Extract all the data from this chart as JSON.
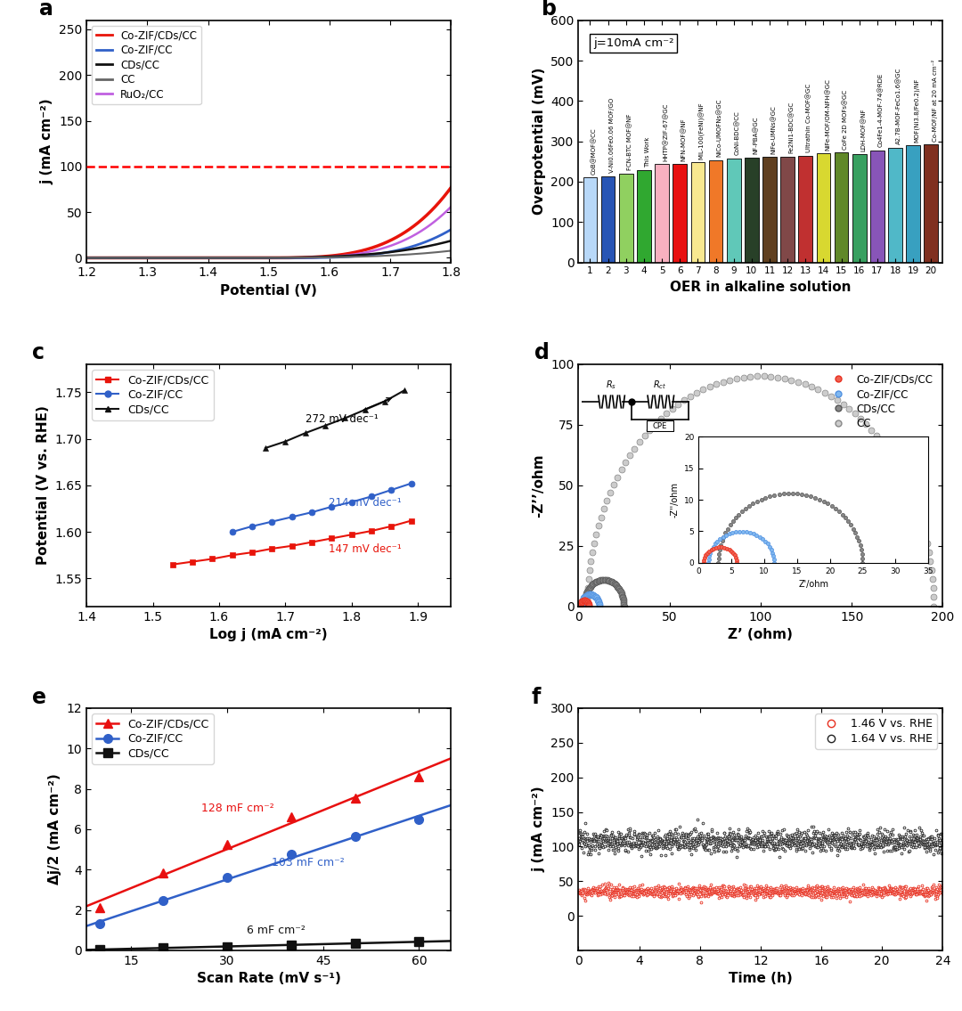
{
  "panel_a": {
    "title": "a",
    "xlabel": "Potential (V)",
    "ylabel": "j (mA cm⁻²)",
    "xlim": [
      1.2,
      1.8
    ],
    "ylim": [
      -5,
      260
    ],
    "yticks": [
      0,
      50,
      100,
      150,
      200,
      250
    ],
    "xticks": [
      1.2,
      1.3,
      1.4,
      1.5,
      1.6,
      1.7,
      1.8
    ],
    "dashed_y": 100,
    "curves": {
      "Co-ZIF/CDs/CC": {
        "color": "#e8140a",
        "lw": 2.5
      },
      "Co-ZIF/CC": {
        "color": "#3060c8",
        "lw": 2.0
      },
      "CDs/CC": {
        "color": "#111111",
        "lw": 1.8
      },
      "CC": {
        "color": "#666666",
        "lw": 1.5
      },
      "RuO2/CC": {
        "color": "#c060e0",
        "lw": 1.8
      }
    }
  },
  "panel_b": {
    "title": "b",
    "ylabel": "Overpotential (mV)",
    "xlabel": "OER in alkaline solution",
    "annotation": "j=10mA cm⁻²",
    "ylim": [
      0,
      600
    ],
    "yticks": [
      0,
      100,
      200,
      300,
      400,
      500,
      600
    ],
    "bars": [
      {
        "label": "CoB@MOF@CC",
        "value": 210,
        "color": "#b8d8f8"
      },
      {
        "label": "V-Ni0.06Fe0.06 MOF/GO",
        "value": 213,
        "color": "#2855b5"
      },
      {
        "label": "FCN-BTC MOF@NF",
        "value": 220,
        "color": "#90d060"
      },
      {
        "label": "This Work",
        "value": 228,
        "color": "#30a830"
      },
      {
        "label": "HHTP@ZIF-67@GC",
        "value": 243,
        "color": "#f8b0c0"
      },
      {
        "label": "NFN-MOF@NF",
        "value": 243,
        "color": "#e81010"
      },
      {
        "label": "MIL-100(FeNi)@NF",
        "value": 248,
        "color": "#f8e890"
      },
      {
        "label": "NiCo-UMOFNs@GC",
        "value": 254,
        "color": "#f07828"
      },
      {
        "label": "CoNi-BDC@CC",
        "value": 258,
        "color": "#60c8b8"
      },
      {
        "label": "NF-PBA@GC",
        "value": 260,
        "color": "#284028"
      },
      {
        "label": "NiFe-UMNs@GC",
        "value": 261,
        "color": "#604020"
      },
      {
        "label": "Fe2Ni1-BDC@GC",
        "value": 262,
        "color": "#804848"
      },
      {
        "label": "Ultrathin Co-MOF@GC",
        "value": 265,
        "color": "#c03030"
      },
      {
        "label": "NiFe-MOF/OM-NFH@GC",
        "value": 270,
        "color": "#d8d830"
      },
      {
        "label": "CoFe 2D MOFs@GC",
        "value": 272,
        "color": "#608828"
      },
      {
        "label": "LDH-MOF@NF",
        "value": 268,
        "color": "#38a060"
      },
      {
        "label": "Co4Fe1-4-MOF-74@RDE",
        "value": 278,
        "color": "#8855b8"
      },
      {
        "label": "A2.7B-MOF-FeCo1.6@GC",
        "value": 284,
        "color": "#50b8c8"
      },
      {
        "label": "MOF(Ni3.8/Fe0.2)/NF",
        "value": 290,
        "color": "#38a0c0"
      },
      {
        "label": "Co-MOF/NF at 20 mA cm⁻²",
        "value": 292,
        "color": "#803020"
      }
    ]
  },
  "panel_c": {
    "title": "c",
    "xlabel": "Log j (mA cm⁻²)",
    "ylabel": "Potential (V vs. RHE)",
    "xlim": [
      1.4,
      1.95
    ],
    "ylim": [
      1.52,
      1.78
    ],
    "yticks": [
      1.55,
      1.6,
      1.65,
      1.7,
      1.75
    ],
    "xticks": [
      1.4,
      1.5,
      1.6,
      1.7,
      1.8,
      1.9
    ],
    "series": {
      "Co-ZIF/CDs/CC": {
        "color": "#e8140a",
        "marker": "s",
        "x": [
          1.53,
          1.56,
          1.59,
          1.62,
          1.65,
          1.68,
          1.71,
          1.74,
          1.77,
          1.8,
          1.83,
          1.86,
          1.89
        ],
        "y": [
          1.565,
          1.568,
          1.571,
          1.575,
          1.578,
          1.582,
          1.585,
          1.589,
          1.593,
          1.597,
          1.601,
          1.606,
          1.612
        ]
      },
      "Co-ZIF/CC": {
        "color": "#3060c8",
        "marker": "o",
        "x": [
          1.62,
          1.65,
          1.68,
          1.71,
          1.74,
          1.77,
          1.8,
          1.83,
          1.86,
          1.89
        ],
        "y": [
          1.6,
          1.606,
          1.611,
          1.616,
          1.621,
          1.627,
          1.632,
          1.638,
          1.645,
          1.652
        ]
      },
      "CDs/CC": {
        "color": "#111111",
        "marker": "^",
        "x": [
          1.67,
          1.7,
          1.73,
          1.76,
          1.79,
          1.82,
          1.85,
          1.88
        ],
        "y": [
          1.69,
          1.697,
          1.706,
          1.714,
          1.722,
          1.731,
          1.74,
          1.752
        ]
      }
    }
  },
  "panel_d": {
    "title": "d",
    "xlabel": "Z’ (ohm)",
    "ylabel": "-Z’’/ohm",
    "xlim": [
      0,
      200
    ],
    "ylim": [
      0,
      100
    ],
    "yticks": [
      0,
      25,
      50,
      75,
      100
    ],
    "xticks": [
      0,
      50,
      100,
      150,
      200
    ],
    "cc": {
      "R_s": 5,
      "R_ct": 190,
      "color": "#aaaaaa",
      "ms": 5
    },
    "cds": {
      "R_s": 3,
      "R_ct": 22,
      "color": "#555555",
      "ms": 5
    },
    "czif": {
      "R_s": 1.5,
      "R_ct": 10,
      "color": "#5090e0",
      "ms": 5
    },
    "czifcds": {
      "R_s": 0.8,
      "R_ct": 5,
      "color": "#e83020",
      "ms": 5
    },
    "inset": {
      "xlim": [
        0,
        35
      ],
      "ylim": [
        0,
        20
      ],
      "xticks": [
        0,
        5,
        10,
        15,
        20,
        25,
        30,
        35
      ]
    }
  },
  "panel_e": {
    "title": "e",
    "xlabel": "Scan Rate (mV s⁻¹)",
    "ylabel": "Δj/2 (mA cm⁻²)",
    "xlim": [
      8,
      65
    ],
    "ylim": [
      0,
      12
    ],
    "yticks": [
      0,
      2,
      4,
      6,
      8,
      10,
      12
    ],
    "xticks": [
      15,
      30,
      45,
      60
    ],
    "series": {
      "Co-ZIF/CDs/CC": {
        "color": "#e81010",
        "marker": "^",
        "x": [
          10,
          20,
          30,
          40,
          50,
          60
        ],
        "y": [
          2.1,
          3.85,
          5.25,
          6.6,
          7.55,
          8.6
        ]
      },
      "Co-ZIF/CC": {
        "color": "#3060c8",
        "marker": "o",
        "x": [
          10,
          20,
          30,
          40,
          50,
          60
        ],
        "y": [
          1.3,
          2.45,
          3.6,
          4.75,
          5.65,
          6.5
        ]
      },
      "CDs/CC": {
        "color": "#111111",
        "marker": "s",
        "x": [
          10,
          20,
          30,
          40,
          50,
          60
        ],
        "y": [
          0.05,
          0.12,
          0.18,
          0.26,
          0.34,
          0.44
        ]
      }
    }
  },
  "panel_f": {
    "title": "f",
    "xlabel": "Time (h)",
    "ylabel": "j (mA cm⁻²)",
    "xlim": [
      0,
      24
    ],
    "ylim": [
      -50,
      300
    ],
    "yticks": [
      -50,
      0,
      50,
      100,
      150,
      200,
      250,
      300
    ],
    "xticks": [
      0,
      4,
      8,
      12,
      16,
      20,
      24
    ],
    "mean_high": 108,
    "mean_low": 35,
    "noise_high": 8,
    "noise_low": 4
  }
}
